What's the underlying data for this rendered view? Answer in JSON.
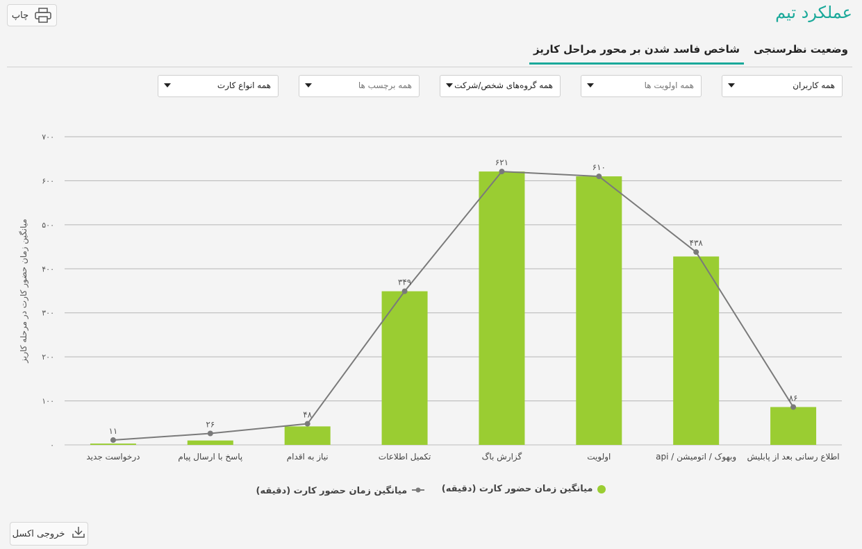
{
  "page": {
    "title": "عملکرد تیم",
    "print_label": "چاپ",
    "excel_label": "خروجی اکسل"
  },
  "tabs": [
    {
      "label": "شاخص فاسد شدن بر محور مراحل کاریز",
      "active": true
    },
    {
      "label": "وضعیت نظرسنجی",
      "active": false
    }
  ],
  "filters": [
    {
      "text": "همه کاربران",
      "placeholder": false
    },
    {
      "text": "همه اولویت ها",
      "placeholder": true
    },
    {
      "text": "همه گروه‌های شخص/شرکت",
      "placeholder": false
    },
    {
      "text": "همه برچسب ها",
      "placeholder": true
    },
    {
      "text": "همه انواع کارت",
      "placeholder": false
    }
  ],
  "chart_data": {
    "type": "bar",
    "categories": [
      "درخواست جدید",
      "پاسخ با ارسال پیام",
      "نیاز به اقدام",
      "تکمیل اطلاعات",
      "گزارش باگ",
      "اولویت",
      "وبهوک / اتومیشن / api",
      "اطلاع رسانی بعد از پابلیش"
    ],
    "series": [
      {
        "name": "میانگین زمان حضور کارت (دقیقه)",
        "type": "bar",
        "color": "#9acd32",
        "values": [
          3,
          10,
          42,
          349,
          621,
          610,
          428,
          86
        ]
      },
      {
        "name": "میانگین زمان حضور کارت (دقیقه)",
        "type": "line",
        "color": "#7a7a7a",
        "values": [
          11,
          26,
          48,
          349,
          621,
          610,
          438,
          86
        ]
      }
    ],
    "data_labels": [
      "۱۱",
      "۲۶",
      "۴۸",
      "۳۴۹",
      "۶۲۱",
      "۶۱۰",
      "۴۳۸",
      "۸۶"
    ],
    "y_ticks": [
      0,
      100,
      200,
      300,
      400,
      500,
      600,
      700
    ],
    "y_tick_labels": [
      "۰",
      "۱۰۰",
      "۲۰۰",
      "۳۰۰",
      "۴۰۰",
      "۵۰۰",
      "۶۰۰",
      "۷۰۰"
    ],
    "ylim": [
      0,
      700
    ],
    "ylabel": "میانگین زمان حضور کارت در مرحله کاریز",
    "grid": true,
    "legend": "bottom"
  }
}
